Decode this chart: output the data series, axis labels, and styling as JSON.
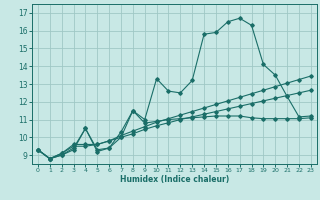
{
  "xlabel": "Humidex (Indice chaleur)",
  "bg_color": "#c8e8e5",
  "grid_color": "#a0c8c5",
  "line_color": "#1a6e68",
  "xlim": [
    -0.5,
    23.5
  ],
  "ylim": [
    8.5,
    17.5
  ],
  "xticks": [
    0,
    1,
    2,
    3,
    4,
    5,
    6,
    7,
    8,
    9,
    10,
    11,
    12,
    13,
    14,
    15,
    16,
    17,
    18,
    19,
    20,
    21,
    22,
    23
  ],
  "yticks": [
    9,
    10,
    11,
    12,
    13,
    14,
    15,
    16,
    17
  ],
  "series1": [
    9.3,
    8.8,
    9.0,
    9.3,
    10.5,
    9.2,
    9.4,
    10.0,
    11.5,
    11.0,
    13.3,
    12.6,
    12.5,
    13.2,
    15.8,
    15.9,
    16.5,
    16.7,
    16.3,
    14.1,
    13.5,
    12.3,
    11.15,
    11.2
  ],
  "series2": [
    9.3,
    8.8,
    9.0,
    9.4,
    10.5,
    9.3,
    9.4,
    10.3,
    11.5,
    10.8,
    10.9,
    11.0,
    11.05,
    11.1,
    11.15,
    11.2,
    11.2,
    11.2,
    11.1,
    11.05,
    11.05,
    11.05,
    11.05,
    11.1
  ],
  "series3": [
    9.3,
    8.8,
    9.1,
    9.6,
    9.6,
    9.6,
    9.8,
    10.1,
    10.35,
    10.6,
    10.85,
    11.05,
    11.25,
    11.45,
    11.65,
    11.85,
    12.05,
    12.25,
    12.45,
    12.65,
    12.85,
    13.05,
    13.25,
    13.45
  ],
  "series4": [
    9.3,
    8.8,
    9.1,
    9.5,
    9.5,
    9.6,
    9.8,
    10.0,
    10.2,
    10.45,
    10.65,
    10.82,
    11.0,
    11.15,
    11.3,
    11.45,
    11.6,
    11.75,
    11.9,
    12.05,
    12.2,
    12.35,
    12.5,
    12.65
  ]
}
